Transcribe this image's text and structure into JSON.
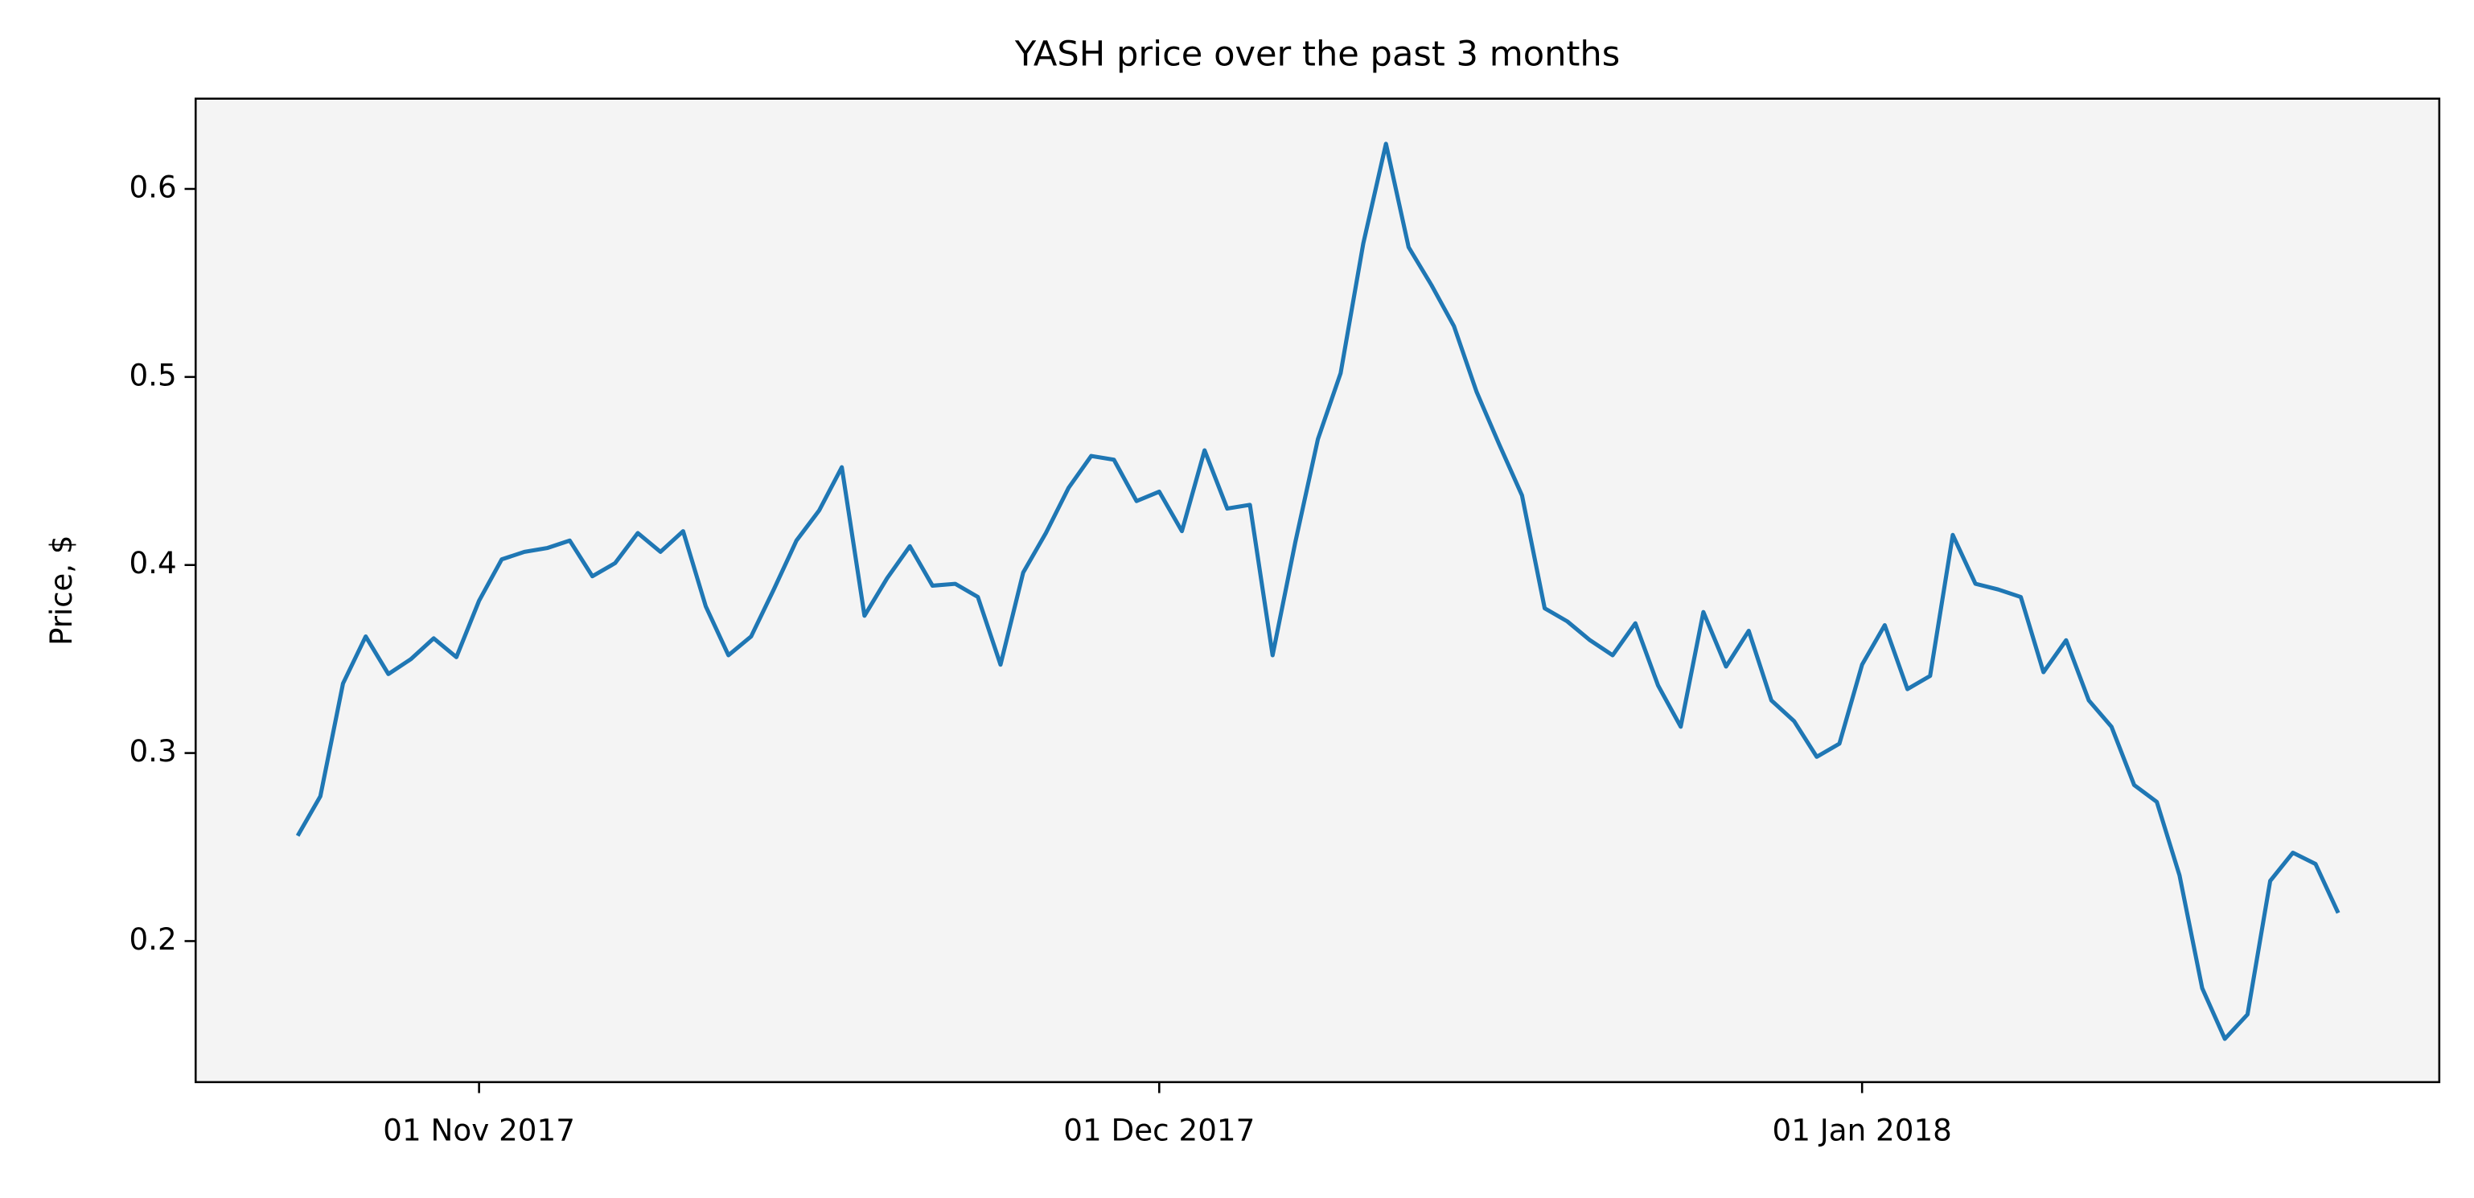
{
  "chart_data": {
    "type": "line",
    "title": "YASH price over the past 3 months",
    "y_label": "Price, $",
    "x": [
      "2017-10-24",
      "2017-10-25",
      "2017-10-26",
      "2017-10-27",
      "2017-10-28",
      "2017-10-29",
      "2017-10-30",
      "2017-10-31",
      "2017-11-01",
      "2017-11-02",
      "2017-11-03",
      "2017-11-04",
      "2017-11-05",
      "2017-11-06",
      "2017-11-07",
      "2017-11-08",
      "2017-11-09",
      "2017-11-10",
      "2017-11-11",
      "2017-11-12",
      "2017-11-13",
      "2017-11-14",
      "2017-11-15",
      "2017-11-16",
      "2017-11-17",
      "2017-11-18",
      "2017-11-19",
      "2017-11-20",
      "2017-11-21",
      "2017-11-22",
      "2017-11-23",
      "2017-11-24",
      "2017-11-25",
      "2017-11-26",
      "2017-11-27",
      "2017-11-28",
      "2017-11-29",
      "2017-11-30",
      "2017-12-01",
      "2017-12-02",
      "2017-12-03",
      "2017-12-04",
      "2017-12-05",
      "2017-12-06",
      "2017-12-07",
      "2017-12-08",
      "2017-12-09",
      "2017-12-10",
      "2017-12-11",
      "2017-12-12",
      "2017-12-13",
      "2017-12-14",
      "2017-12-15",
      "2017-12-16",
      "2017-12-17",
      "2017-12-18",
      "2017-12-19",
      "2017-12-20",
      "2017-12-21",
      "2017-12-22",
      "2017-12-23",
      "2017-12-24",
      "2017-12-25",
      "2017-12-26",
      "2017-12-27",
      "2017-12-28",
      "2017-12-29",
      "2017-12-30",
      "2017-12-31",
      "2018-01-01",
      "2018-01-02",
      "2018-01-03",
      "2018-01-04",
      "2018-01-05",
      "2018-01-06",
      "2018-01-07",
      "2018-01-08",
      "2018-01-09",
      "2018-01-10",
      "2018-01-11",
      "2018-01-12",
      "2018-01-13",
      "2018-01-14",
      "2018-01-15",
      "2018-01-16",
      "2018-01-17",
      "2018-01-18",
      "2018-01-19",
      "2018-01-20",
      "2018-01-21",
      "2018-01-22"
    ],
    "series": [
      {
        "color": "#1f77b4",
        "values": [
          0.256,
          0.277,
          0.337,
          0.362,
          0.342,
          0.35,
          0.361,
          0.351,
          0.381,
          0.403,
          0.407,
          0.409,
          0.413,
          0.394,
          0.401,
          0.417,
          0.407,
          0.418,
          0.378,
          0.352,
          0.362,
          0.387,
          0.413,
          0.429,
          0.452,
          0.373,
          0.393,
          0.41,
          0.389,
          0.39,
          0.383,
          0.347,
          0.396,
          0.417,
          0.441,
          0.458,
          0.456,
          0.434,
          0.439,
          0.418,
          0.461,
          0.43,
          0.432,
          0.352,
          0.412,
          0.467,
          0.502,
          0.571,
          0.624,
          0.569,
          0.549,
          0.527,
          0.492,
          0.464,
          0.437,
          0.377,
          0.37,
          0.36,
          0.352,
          0.369,
          0.336,
          0.314,
          0.375,
          0.346,
          0.365,
          0.328,
          0.317,
          0.298,
          0.305,
          0.347,
          0.368,
          0.334,
          0.341,
          0.416,
          0.39,
          0.387,
          0.383,
          0.343,
          0.36,
          0.328,
          0.314,
          0.283,
          0.274,
          0.235,
          0.175,
          0.148,
          0.161,
          0.232,
          0.247,
          0.241,
          0.215
        ]
      }
    ],
    "xlim": [
      "2017-10-19T12:00:00Z",
      "2018-01-26T11:00:00Z"
    ],
    "xticks": [
      {
        "value": "2017-11-01",
        "label": "01 Nov 2017"
      },
      {
        "value": "2017-12-01",
        "label": "01 Dec 2017"
      },
      {
        "value": "2018-01-01",
        "label": "01 Jan 2018"
      }
    ],
    "ylim": [
      0.125,
      0.648
    ],
    "yticks": [
      0.2,
      0.3,
      0.4,
      0.5,
      0.6
    ],
    "background": "#f4f4f4"
  }
}
